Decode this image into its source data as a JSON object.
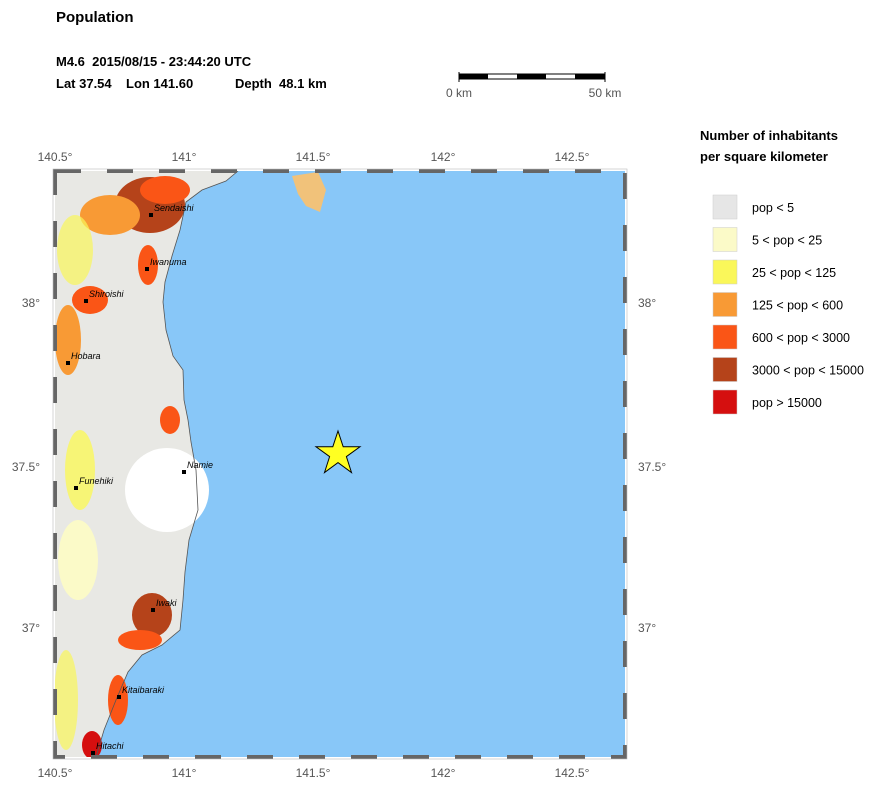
{
  "header": {
    "title": "Population",
    "event": "M4.6  2015/08/15 - 23:44:20 UTC",
    "lat": "Lat 37.54",
    "lon": "Lon 141.60",
    "depth": "Depth  48.1 km"
  },
  "scale_bar": {
    "start": "0 km",
    "end": "50 km"
  },
  "map": {
    "lon_labels": [
      "140.5°",
      "141°",
      "141.5°",
      "142°",
      "142.5°"
    ],
    "lat_labels": [
      "38°",
      "37.5°",
      "37°"
    ],
    "cities": [
      "Sendaishi",
      "Iwanuma",
      "Shiroishi",
      "Hobara",
      "Funehiki",
      "Namie",
      "Iwaki",
      "Kitaibaraki",
      "Hitachi"
    ]
  },
  "legend": {
    "title": [
      "Number of inhabitants",
      "per square kilometer"
    ],
    "items": [
      {
        "label": "pop < 5",
        "color": "#e6e6e6"
      },
      {
        "label": "5 < pop < 25",
        "color": "#fbfac8"
      },
      {
        "label": "25 < pop < 125",
        "color": "#faf75a"
      },
      {
        "label": "125 < pop < 600",
        "color": "#f89a35"
      },
      {
        "label": "600 < pop < 3000",
        "color": "#fa5516"
      },
      {
        "label": "3000 < pop < 15000",
        "color": "#b5431a"
      },
      {
        "label": "pop > 15000",
        "color": "#d50f0f"
      }
    ]
  }
}
